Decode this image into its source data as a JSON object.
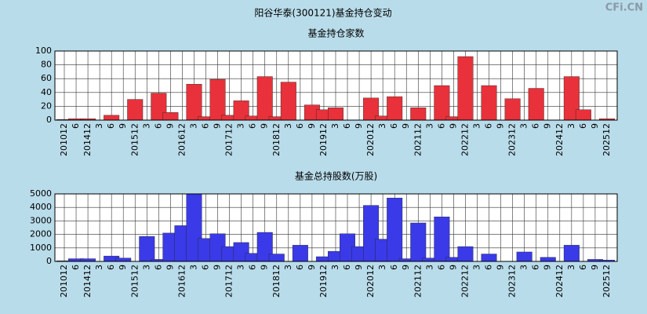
{
  "title": "阳谷华泰(300121)基金持仓变动",
  "watermark": "CFi.CN",
  "chart_data": [
    {
      "type": "bar",
      "title": "基金持仓家数",
      "color": "#e8313a",
      "grid": true,
      "categories": [
        "201012",
        "6",
        "201412",
        "3",
        "6",
        "9",
        "201512",
        "3",
        "6",
        "9",
        "201612",
        "3",
        "6",
        "9",
        "201712",
        "3",
        "6",
        "9",
        "201812",
        "3",
        "6",
        "9",
        "201912",
        "3",
        "6",
        "9",
        "202012",
        "3",
        "6",
        "9",
        "202112",
        "3",
        "6",
        "9",
        "202212",
        "3",
        "6",
        "9",
        "202312",
        "3",
        "6",
        "9",
        "202412",
        "3",
        "6",
        "9",
        "202512"
      ],
      "values": [
        1,
        2,
        2,
        0,
        7,
        0,
        30,
        0,
        39,
        11,
        0,
        52,
        5,
        59,
        7,
        28,
        6,
        63,
        5,
        55,
        0,
        22,
        15,
        18,
        0,
        0,
        32,
        6,
        34,
        0,
        18,
        0,
        50,
        5,
        92,
        0,
        50,
        0,
        31,
        0,
        46,
        0,
        0,
        63,
        15,
        0,
        2
      ],
      "ylim": [
        0,
        100
      ],
      "yticks": [
        0,
        20,
        40,
        60,
        80,
        100
      ]
    },
    {
      "type": "bar",
      "title": "基金总持股数(万股)",
      "color": "#3a3ae8",
      "grid": true,
      "categories": [
        "201012",
        "6",
        "201412",
        "3",
        "6",
        "9",
        "201512",
        "3",
        "6",
        "9",
        "201612",
        "3",
        "6",
        "9",
        "201712",
        "3",
        "6",
        "9",
        "201812",
        "3",
        "6",
        "9",
        "201912",
        "3",
        "6",
        "9",
        "202012",
        "3",
        "6",
        "9",
        "202112",
        "3",
        "6",
        "9",
        "202212",
        "3",
        "6",
        "9",
        "202312",
        "3",
        "6",
        "9",
        "202412",
        "3",
        "6",
        "9",
        "202512"
      ],
      "values": [
        50,
        200,
        200,
        0,
        400,
        250,
        0,
        1850,
        150,
        2100,
        2650,
        5000,
        1700,
        2050,
        1100,
        1400,
        600,
        2150,
        550,
        0,
        1200,
        0,
        350,
        750,
        2050,
        1100,
        4150,
        1650,
        4700,
        200,
        2850,
        250,
        3300,
        300,
        1100,
        0,
        550,
        0,
        0,
        700,
        0,
        300,
        0,
        1200,
        0,
        150,
        100
      ],
      "ylim": [
        0,
        5000
      ],
      "yticks": [
        0,
        1000,
        2000,
        3000,
        4000,
        5000
      ]
    }
  ]
}
